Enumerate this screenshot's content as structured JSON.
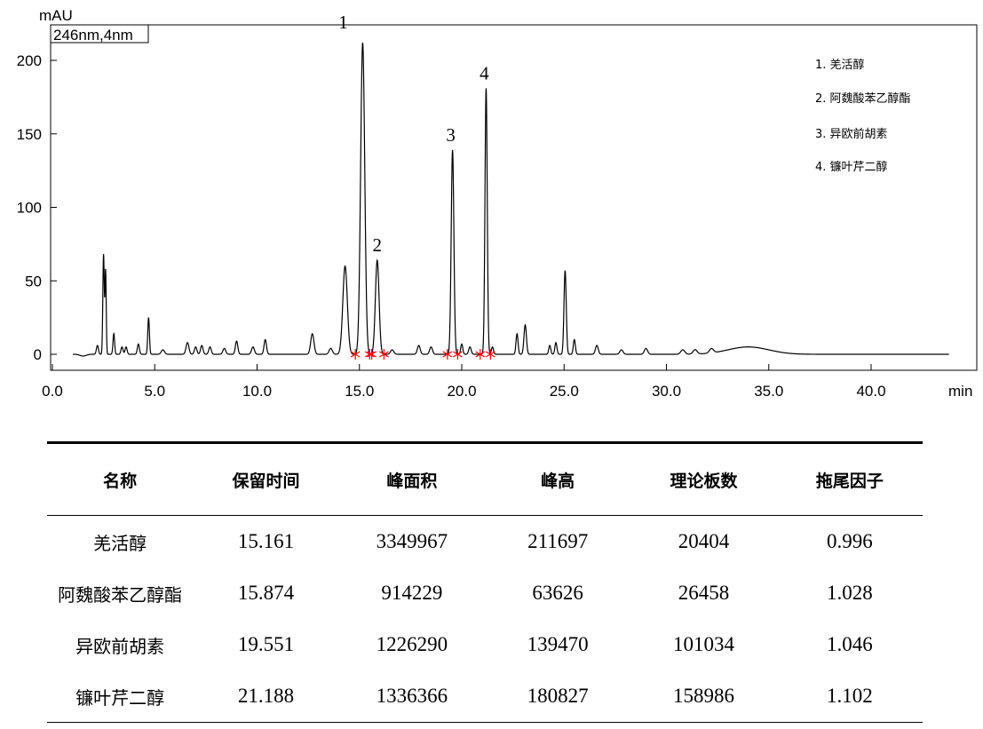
{
  "chart_data": {
    "type": "line",
    "ylabel": "mAU",
    "xlabel": "min",
    "detector_label": "246nm,4nm",
    "xlim": [
      0,
      44
    ],
    "ylim": [
      -12,
      225
    ],
    "xticks": [
      "0.0",
      "5.0",
      "10.0",
      "15.0",
      "20.0",
      "25.0",
      "30.0",
      "35.0",
      "40.0"
    ],
    "yticks": [
      "0",
      "50",
      "100",
      "150",
      "200"
    ],
    "baseline": 0,
    "peaks": [
      {
        "x": 2.2,
        "y": 6,
        "w": 0.05
      },
      {
        "x": 2.5,
        "y": 68,
        "w": 0.035
      },
      {
        "x": 2.6,
        "y": 57,
        "w": 0.03
      },
      {
        "x": 3.0,
        "y": 14,
        "w": 0.04
      },
      {
        "x": 3.4,
        "y": 5,
        "w": 0.05
      },
      {
        "x": 3.6,
        "y": 5,
        "w": 0.05
      },
      {
        "x": 4.2,
        "y": 7,
        "w": 0.05
      },
      {
        "x": 4.7,
        "y": 25,
        "w": 0.04
      },
      {
        "x": 5.4,
        "y": 3,
        "w": 0.08
      },
      {
        "x": 6.6,
        "y": 8,
        "w": 0.07
      },
      {
        "x": 7.0,
        "y": 5,
        "w": 0.06
      },
      {
        "x": 7.3,
        "y": 6,
        "w": 0.06
      },
      {
        "x": 7.7,
        "y": 5,
        "w": 0.06
      },
      {
        "x": 8.4,
        "y": 4,
        "w": 0.07
      },
      {
        "x": 9.0,
        "y": 9,
        "w": 0.06
      },
      {
        "x": 9.8,
        "y": 5,
        "w": 0.07
      },
      {
        "x": 10.4,
        "y": 10,
        "w": 0.06
      },
      {
        "x": 12.7,
        "y": 14,
        "w": 0.08
      },
      {
        "x": 13.6,
        "y": 4,
        "w": 0.08
      },
      {
        "x": 14.3,
        "y": 60,
        "w": 0.11
      },
      {
        "x": 15.16,
        "y": 212,
        "w": 0.1
      },
      {
        "x": 15.87,
        "y": 64,
        "w": 0.09
      },
      {
        "x": 16.6,
        "y": 3,
        "w": 0.08
      },
      {
        "x": 17.9,
        "y": 6,
        "w": 0.07
      },
      {
        "x": 18.5,
        "y": 5,
        "w": 0.07
      },
      {
        "x": 19.55,
        "y": 139,
        "w": 0.065
      },
      {
        "x": 20.0,
        "y": 7,
        "w": 0.05
      },
      {
        "x": 20.4,
        "y": 5,
        "w": 0.06
      },
      {
        "x": 21.19,
        "y": 181,
        "w": 0.055
      },
      {
        "x": 21.5,
        "y": 5,
        "w": 0.05
      },
      {
        "x": 22.7,
        "y": 14,
        "w": 0.05
      },
      {
        "x": 23.1,
        "y": 20,
        "w": 0.06
      },
      {
        "x": 24.3,
        "y": 6,
        "w": 0.05
      },
      {
        "x": 24.6,
        "y": 8,
        "w": 0.05
      },
      {
        "x": 25.05,
        "y": 57,
        "w": 0.055
      },
      {
        "x": 25.5,
        "y": 10,
        "w": 0.05
      },
      {
        "x": 26.6,
        "y": 6,
        "w": 0.07
      },
      {
        "x": 27.8,
        "y": 3,
        "w": 0.08
      },
      {
        "x": 29.0,
        "y": 4,
        "w": 0.08
      },
      {
        "x": 30.8,
        "y": 3,
        "w": 0.1
      },
      {
        "x": 31.4,
        "y": 3,
        "w": 0.1
      },
      {
        "x": 32.2,
        "y": 3,
        "w": 0.1
      },
      {
        "x": 34.0,
        "y": 5,
        "w": 1.0
      }
    ],
    "integration_marks": [
      14.8,
      15.5,
      15.6,
      16.2,
      19.3,
      19.8,
      20.9,
      21.4
    ],
    "peak_labels": [
      {
        "x": 15.16,
        "y": 212,
        "label": "1"
      },
      {
        "x": 15.87,
        "y": 64,
        "label": "2"
      },
      {
        "x": 19.55,
        "y": 139,
        "label": "3"
      },
      {
        "x": 21.19,
        "y": 181,
        "label": "4"
      }
    ],
    "legend": [
      "1.  羌活醇",
      "2.  阿魏酸苯乙醇酯",
      "3.  异欧前胡素",
      "4.  镰叶芹二醇"
    ],
    "line_color": "#000000",
    "marker_color": "#ff0000"
  },
  "table": {
    "headers": [
      "名称",
      "保留时间",
      "峰面积",
      "峰高",
      "理论板数",
      "拖尾因子"
    ],
    "rows": [
      [
        "羌活醇",
        "15.161",
        "3349967",
        "211697",
        "20404",
        "0.996"
      ],
      [
        "阿魏酸苯乙醇酯",
        "15.874",
        "914229",
        "63626",
        "26458",
        "1.028"
      ],
      [
        "异欧前胡素",
        "19.551",
        "1226290",
        "139470",
        "101034",
        "1.046"
      ],
      [
        "镰叶芹二醇",
        "21.188",
        "1336366",
        "180827",
        "158986",
        "1.102"
      ]
    ]
  }
}
